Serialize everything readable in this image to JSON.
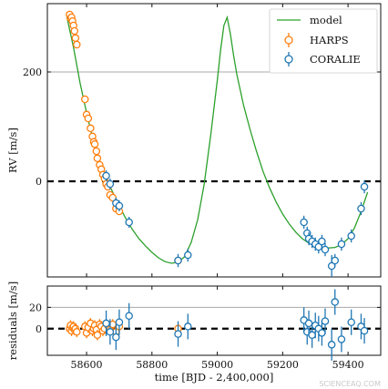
{
  "watermark": "SCIENCEAQ.COM",
  "colors": {
    "model": "#2ca02c",
    "harps": "#ff7f0e",
    "coralie": "#1f77b4",
    "zero": "#000000",
    "ref": "#aaaaaa"
  },
  "chart_data": [
    {
      "type": "line",
      "panel": "rv",
      "title": "",
      "xlabel": "",
      "ylabel": "RV [m/s]",
      "xlim": [
        58480,
        59500
      ],
      "ylim": [
        -175,
        325
      ],
      "yticks": [
        0,
        200
      ],
      "xticks": [
        58600,
        58800,
        59000,
        59200,
        59400
      ],
      "reference_lines": [
        {
          "y": 0,
          "style": "dashed"
        },
        {
          "y": 200,
          "style": "solid"
        }
      ],
      "legend": {
        "position": "top-right",
        "entries": [
          "model",
          "HARPS",
          "CORALIE"
        ]
      },
      "model": {
        "name": "model",
        "x": [
          58540,
          58560,
          58580,
          58600,
          58620,
          58640,
          58660,
          58680,
          58700,
          58720,
          58740,
          58760,
          58780,
          58800,
          58820,
          58840,
          58860,
          58880,
          58900,
          58920,
          58940,
          58960,
          58980,
          59000,
          59010,
          59020,
          59030,
          59040,
          59050,
          59060,
          59080,
          59100,
          59120,
          59140,
          59160,
          59180,
          59200,
          59220,
          59240,
          59260,
          59280,
          59300,
          59320,
          59340,
          59360,
          59380,
          59400,
          59420,
          59440,
          59460
        ],
        "y": [
          300,
          245,
          180,
          125,
          75,
          37,
          5,
          -20,
          -45,
          -68,
          -88,
          -105,
          -118,
          -130,
          -140,
          -147,
          -150,
          -148,
          -138,
          -112,
          -70,
          -5,
          85,
          185,
          240,
          285,
          300,
          270,
          230,
          195,
          140,
          95,
          55,
          18,
          -12,
          -38,
          -60,
          -78,
          -93,
          -105,
          -113,
          -118,
          -121,
          -122,
          -121,
          -116,
          -105,
          -85,
          -55,
          -20
        ]
      },
      "series": [
        {
          "name": "HARPS",
          "x": [
            58548,
            58551,
            58554,
            58557,
            58560,
            58563,
            58566,
            58570,
            58595,
            58600,
            58605,
            58612,
            58618,
            58622,
            58625,
            58630,
            58633,
            58640,
            58645,
            58650,
            58655,
            58660,
            58665,
            58672,
            58680,
            58690,
            58700,
            58880
          ],
          "y": [
            305,
            298,
            300,
            293,
            285,
            275,
            262,
            250,
            150,
            122,
            115,
            97,
            82,
            72,
            68,
            55,
            42,
            30,
            22,
            12,
            5,
            -5,
            -10,
            -25,
            -30,
            -50,
            -55,
            -145
          ],
          "err": [
            6,
            6,
            6,
            6,
            6,
            6,
            6,
            6,
            6,
            6,
            6,
            6,
            6,
            6,
            6,
            6,
            6,
            6,
            6,
            6,
            6,
            6,
            6,
            6,
            6,
            6,
            6,
            6
          ]
        },
        {
          "name": "CORALIE",
          "x": [
            58660,
            58672,
            58690,
            58700,
            58730,
            58880,
            58910,
            59265,
            59275,
            59280,
            59290,
            59300,
            59310,
            59320,
            59330,
            59350,
            59360,
            59380,
            59410,
            59440,
            59450
          ],
          "y": [
            10,
            -5,
            -40,
            -45,
            -75,
            -145,
            -135,
            -75,
            -95,
            -105,
            -110,
            -115,
            -120,
            -110,
            -125,
            -155,
            -145,
            -115,
            -100,
            -50,
            -10
          ],
          "err": [
            10,
            10,
            10,
            10,
            10,
            12,
            12,
            12,
            12,
            12,
            12,
            12,
            12,
            12,
            12,
            20,
            12,
            12,
            12,
            12,
            12
          ]
        }
      ]
    },
    {
      "type": "scatter",
      "panel": "residuals",
      "title": "",
      "xlabel": "time [BJD - 2,400,000]",
      "ylabel": "residuals [m/s]",
      "xlim": [
        58480,
        59500
      ],
      "ylim": [
        -25,
        40
      ],
      "yticks": [
        0,
        20
      ],
      "xticks": [
        58600,
        58800,
        59000,
        59200,
        59400
      ],
      "xticklabels": [
        "58600",
        "58800",
        "59000",
        "59200",
        "59400"
      ],
      "reference_lines": [
        {
          "y": 0,
          "style": "dashed"
        },
        {
          "y": 20,
          "style": "solid"
        }
      ],
      "series": [
        {
          "name": "HARPS",
          "x": [
            58548,
            58551,
            58554,
            58557,
            58560,
            58563,
            58566,
            58570,
            58595,
            58600,
            58605,
            58612,
            58618,
            58622,
            58625,
            58630,
            58633,
            58640,
            58645,
            58650,
            58655,
            58665,
            58672,
            58680,
            58690,
            58700,
            58880
          ],
          "y": [
            0,
            3,
            -2,
            1,
            2,
            -1,
            0,
            -3,
            2,
            -4,
            1,
            5,
            -2,
            0,
            3,
            -1,
            -6,
            4,
            2,
            -2,
            0,
            3,
            -1,
            4,
            -3,
            2,
            0
          ],
          "err": [
            5,
            5,
            5,
            5,
            5,
            5,
            5,
            5,
            5,
            5,
            5,
            5,
            5,
            5,
            5,
            5,
            5,
            5,
            5,
            5,
            5,
            5,
            5,
            5,
            5,
            5,
            5
          ]
        },
        {
          "name": "CORALIE",
          "x": [
            58660,
            58672,
            58690,
            58700,
            58730,
            58880,
            58910,
            59265,
            59275,
            59280,
            59290,
            59300,
            59310,
            59320,
            59330,
            59350,
            59360,
            59380,
            59410,
            59440,
            59450
          ],
          "y": [
            5,
            -3,
            -8,
            6,
            12,
            -5,
            2,
            8,
            -3,
            5,
            -6,
            3,
            0,
            -4,
            7,
            -15,
            25,
            -10,
            6,
            2,
            -2
          ],
          "err": [
            12,
            12,
            12,
            12,
            12,
            12,
            12,
            12,
            12,
            12,
            12,
            12,
            12,
            12,
            12,
            15,
            12,
            12,
            12,
            12,
            12
          ]
        }
      ]
    }
  ]
}
